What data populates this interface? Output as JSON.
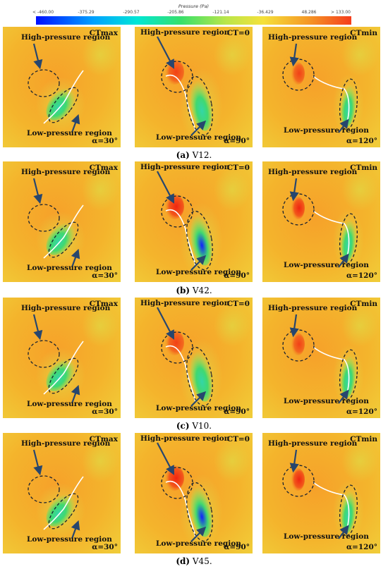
{
  "colorbar": {
    "title": "Pressure (Pa)",
    "ticks": [
      "< -460.00",
      "-375.29",
      "-290.57",
      "-205.86",
      "-121.14",
      "-36.429",
      "48.286",
      "> 133.00"
    ]
  },
  "rows": [
    {
      "caption_letter": "(a)",
      "caption_text": "V12.",
      "panels": [
        {
          "coef": "CTmax",
          "alpha": "α=30°",
          "high": "High-pressure region",
          "low": "Low-pressure region"
        },
        {
          "coef": "CT=0",
          "alpha": "α=90°",
          "high": "High-pressure region",
          "low": "Low-pressure region"
        },
        {
          "coef": "CTmin",
          "alpha": "α=120°",
          "high": "High-pressure region",
          "low": "Low-pressure region"
        }
      ]
    },
    {
      "caption_letter": "(b)",
      "caption_text": "V42.",
      "panels": [
        {
          "coef": "CTmax",
          "alpha": "α=30°",
          "high": "High-pressure region",
          "low": "Low-pressure region"
        },
        {
          "coef": "CT=0",
          "alpha": "α=90°",
          "high": "High-pressure region",
          "low": "Low-pressure region"
        },
        {
          "coef": "CTmin",
          "alpha": "α=120°",
          "high": "High-pressure region",
          "low": "Low-pressure region"
        }
      ]
    },
    {
      "caption_letter": "(c)",
      "caption_text": "V10.",
      "panels": [
        {
          "coef": "CTmax",
          "alpha": "α=30°",
          "high": "High-pressure region",
          "low": "Low-pressure region"
        },
        {
          "coef": "CT=0",
          "alpha": "α=90°",
          "high": "High-pressure region",
          "low": "Low-pressure region"
        },
        {
          "coef": "CTmin",
          "alpha": "α=120°",
          "high": "High-pressure region",
          "low": "Low-pressure region"
        }
      ]
    },
    {
      "caption_letter": "(d)",
      "caption_text": "V45.",
      "panels": [
        {
          "coef": "CTmax",
          "alpha": "α=30°",
          "high": "High-pressure region",
          "low": "Low-pressure region"
        },
        {
          "coef": "CT=0",
          "alpha": "α=90°",
          "high": "High-pressure region",
          "low": "Low-pressure region"
        },
        {
          "coef": "CTmin",
          "alpha": "α=120°",
          "high": "High-pressure region",
          "low": "Low-pressure region"
        }
      ]
    }
  ]
}
